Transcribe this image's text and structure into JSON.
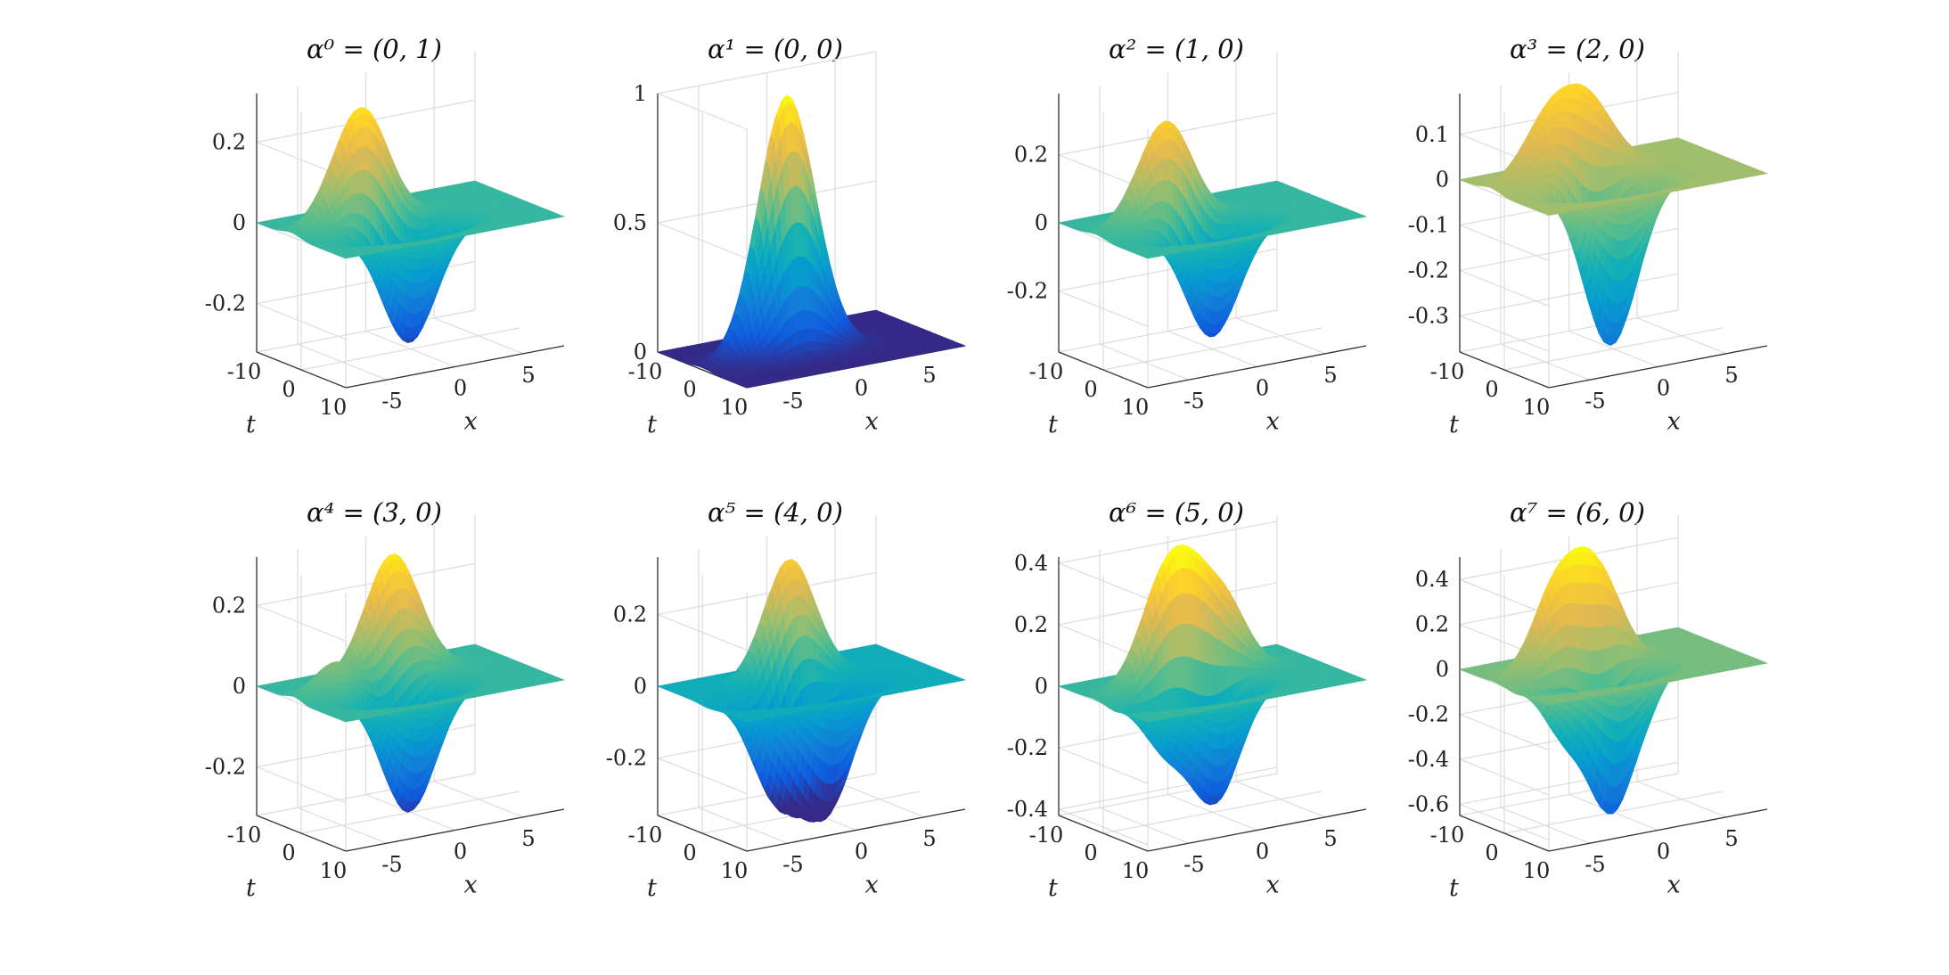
{
  "chart_data": [
    {
      "type": "surface",
      "title": "α⁰ = (0, 1)",
      "xlabel": "x",
      "ylabel": "t",
      "ylim": [
        -0.32,
        0.32
      ],
      "zticks": [
        "0.2",
        "0",
        "-0.2"
      ],
      "ztick_values": [
        0.2,
        0,
        -0.2
      ],
      "xticks": [
        "-5",
        "0",
        "5"
      ],
      "tticks": [
        "-10",
        "0",
        "10"
      ],
      "flat_level": 0.5,
      "bumps": [
        {
          "x": -2.8,
          "t": -2.2,
          "h": 0.3,
          "s": 2.0
        },
        {
          "x": -1.0,
          "t": 2.4,
          "h": -0.3,
          "s": 2.0
        }
      ]
    },
    {
      "type": "surface",
      "title": "α¹ = (0, 0)",
      "xlabel": "x",
      "ylabel": "t",
      "ylim": [
        0,
        1
      ],
      "zticks": [
        "1",
        "0.5",
        "0"
      ],
      "ztick_values": [
        1,
        0.5,
        0
      ],
      "xticks": [
        "-5",
        "0",
        "5"
      ],
      "tticks": [
        "-10",
        "0",
        "10"
      ],
      "flat_level": 0.0,
      "bumps": [
        {
          "x": -1.8,
          "t": 0.0,
          "h": 1.0,
          "s": 2.0
        }
      ]
    },
    {
      "type": "surface",
      "title": "α² = (1, 0)",
      "xlabel": "x",
      "ylabel": "t",
      "ylim": [
        -0.38,
        0.38
      ],
      "zticks": [
        "0.2",
        "0",
        "-0.2"
      ],
      "ztick_values": [
        0.2,
        0,
        -0.2
      ],
      "xticks": [
        "-5",
        "0",
        "5"
      ],
      "tticks": [
        "-10",
        "0",
        "10"
      ],
      "flat_level": 0.5,
      "bumps": [
        {
          "x": -2.7,
          "t": -1.6,
          "h": 0.33,
          "s": 2.0
        },
        {
          "x": -1.0,
          "t": 2.4,
          "h": -0.35,
          "s": 2.0
        }
      ]
    },
    {
      "type": "surface",
      "title": "α³ = (2, 0)",
      "xlabel": "x",
      "ylabel": "t",
      "ylim": [
        -0.38,
        0.19
      ],
      "zticks": [
        "0.1",
        "0",
        "-0.1",
        "-0.2",
        "-0.3"
      ],
      "ztick_values": [
        0.1,
        0,
        -0.1,
        -0.2,
        -0.3
      ],
      "xticks": [
        "-5",
        "0",
        "5"
      ],
      "tticks": [
        "-10",
        "0",
        "10"
      ],
      "flat_level": 0.66,
      "bumps": [
        {
          "x": -3.6,
          "t": -3.0,
          "h": 0.14,
          "s": 1.9
        },
        {
          "x": -0.6,
          "t": -4.2,
          "h": 0.15,
          "s": 1.9
        },
        {
          "x": -1.6,
          "t": 0.2,
          "h": -0.05,
          "s": 1.3
        },
        {
          "x": -1.0,
          "t": 2.6,
          "h": -0.35,
          "s": 1.9
        }
      ]
    },
    {
      "type": "surface",
      "title": "α⁴ = (3, 0)",
      "xlabel": "x",
      "ylabel": "t",
      "ylim": [
        -0.32,
        0.32
      ],
      "zticks": [
        "0.2",
        "0",
        "-0.2"
      ],
      "ztick_values": [
        0.2,
        0,
        -0.2
      ],
      "xticks": [
        "-5",
        "0",
        "5"
      ],
      "tticks": [
        "-10",
        "0",
        "10"
      ],
      "flat_level": 0.5,
      "bumps": [
        {
          "x": -4.8,
          "t": -1.6,
          "h": 0.08,
          "s": 1.6
        },
        {
          "x": -1.7,
          "t": -1.0,
          "h": -0.06,
          "s": 1.4
        },
        {
          "x": 0.2,
          "t": -4.6,
          "h": 0.3,
          "s": 1.9
        },
        {
          "x": -1.0,
          "t": 2.8,
          "h": -0.3,
          "s": 1.9
        }
      ]
    },
    {
      "type": "surface",
      "title": "α⁵ = (4, 0)",
      "xlabel": "x",
      "ylabel": "t",
      "ylim": [
        -0.36,
        0.36
      ],
      "zticks": [
        "0.2",
        "0",
        "-0.2"
      ],
      "ztick_values": [
        0.2,
        0,
        -0.2
      ],
      "xticks": [
        "-5",
        "0",
        "5"
      ],
      "tticks": [
        "-10",
        "0",
        "10"
      ],
      "flat_level": 0.42,
      "bumps": [
        {
          "x": -0.5,
          "t": -3.4,
          "h": 0.33,
          "s": 1.8
        },
        {
          "x": -1.2,
          "t": 0.0,
          "h": 0.12,
          "s": 1.5
        },
        {
          "x": -2.8,
          "t": 1.3,
          "h": -0.32,
          "s": 1.8
        },
        {
          "x": 0.2,
          "t": 3.2,
          "h": -0.32,
          "s": 1.8
        }
      ]
    },
    {
      "type": "surface",
      "title": "α⁶ = (5, 0)",
      "xlabel": "x",
      "ylabel": "t",
      "ylim": [
        -0.42,
        0.42
      ],
      "zticks": [
        "0.4",
        "0.2",
        "0",
        "-0.2",
        "-0.4"
      ],
      "ztick_values": [
        0.4,
        0.2,
        0,
        -0.2,
        -0.4
      ],
      "xticks": [
        "-5",
        "0",
        "5"
      ],
      "tticks": [
        "-10",
        "0",
        "10"
      ],
      "flat_level": 0.5,
      "bumps": [
        {
          "x": -2.6,
          "t": -2.3,
          "h": 0.36,
          "s": 1.8
        },
        {
          "x": -0.2,
          "t": -2.0,
          "h": 0.2,
          "s": 1.6
        },
        {
          "x": 2.0,
          "t": -3.2,
          "h": 0.2,
          "s": 1.6
        },
        {
          "x": -4.4,
          "t": 2.6,
          "h": -0.15,
          "s": 1.5
        },
        {
          "x": -0.8,
          "t": 2.8,
          "h": -0.37,
          "s": 1.8
        }
      ]
    },
    {
      "type": "surface",
      "title": "α⁷ = (6, 0)",
      "xlabel": "x",
      "ylabel": "t",
      "ylim": [
        -0.65,
        0.5
      ],
      "zticks": [
        "0.4",
        "0.2",
        "0",
        "-0.2",
        "-0.4",
        "-0.6"
      ],
      "ztick_values": [
        0.4,
        0.2,
        0,
        -0.2,
        -0.4,
        -0.6
      ],
      "xticks": [
        "-5",
        "0",
        "5"
      ],
      "tticks": [
        "-10",
        "0",
        "10"
      ],
      "flat_level": 0.6,
      "bumps": [
        {
          "x": -3.4,
          "t": -2.6,
          "h": 0.35,
          "s": 1.6
        },
        {
          "x": -0.8,
          "t": -3.6,
          "h": 0.38,
          "s": 1.6
        },
        {
          "x": 0.6,
          "t": -2.0,
          "h": 0.15,
          "s": 1.3
        },
        {
          "x": -4.5,
          "t": 2.6,
          "h": -0.22,
          "s": 1.4
        },
        {
          "x": -1.2,
          "t": 3.0,
          "h": -0.6,
          "s": 1.6
        },
        {
          "x": 1.4,
          "t": 3.0,
          "h": -0.12,
          "s": 1.2
        }
      ]
    }
  ]
}
